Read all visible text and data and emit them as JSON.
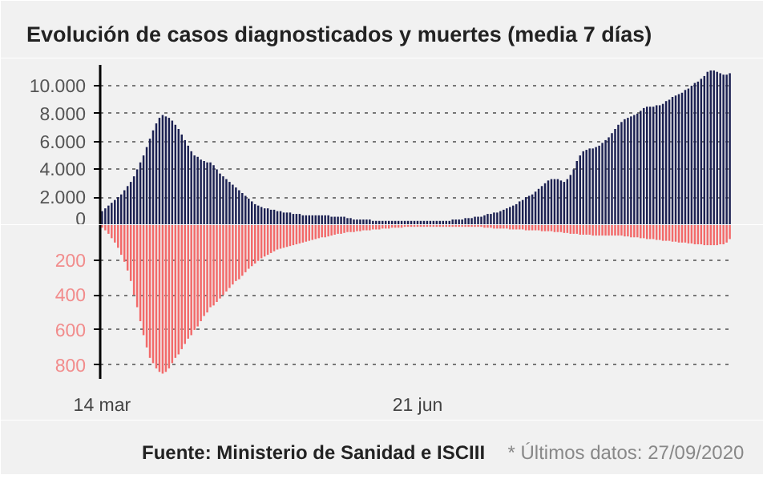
{
  "chart_data": [
    {
      "type": "bar",
      "title": "Evolución de casos diagnosticados y muertes (media 7 días)",
      "grid": "y",
      "ylim": [
        0,
        11500
      ],
      "yticks": [
        0,
        {
          "value": 2000,
          "label": "2.000"
        },
        {
          "value": 4000,
          "label": "4.000"
        },
        {
          "value": 6000,
          "label": "6.000"
        },
        {
          "value": 8000,
          "label": "8.000"
        },
        {
          "value": 10000,
          "label": "10.000"
        }
      ],
      "categories": [
        null,
        null,
        null,
        null,
        null,
        null,
        null,
        null,
        null,
        null,
        null,
        null,
        null,
        null,
        null,
        null,
        null,
        null,
        null,
        null,
        null,
        null,
        null,
        null,
        null,
        null,
        null,
        null,
        null,
        null,
        null,
        null,
        null,
        null,
        null,
        null,
        null,
        null,
        null,
        null,
        null,
        null,
        null,
        null,
        null,
        null,
        null,
        null,
        null,
        null,
        null,
        null,
        null,
        null,
        null,
        null,
        null,
        null,
        null,
        null,
        null,
        null,
        null,
        null,
        null,
        null,
        null,
        null,
        null,
        null,
        null,
        null,
        null,
        null,
        null,
        null,
        null,
        null,
        null,
        null,
        null,
        null,
        null,
        null,
        null,
        null,
        null,
        null,
        null,
        null,
        null,
        null,
        null,
        null,
        null,
        null,
        null,
        null,
        null,
        null,
        null,
        null,
        null,
        null,
        null,
        null,
        null,
        null,
        null,
        null,
        null,
        null,
        null,
        null,
        null,
        null,
        null,
        null,
        null,
        null,
        null,
        null,
        null,
        null,
        null,
        null,
        null,
        null,
        null,
        null,
        null,
        null,
        null,
        null,
        null,
        null,
        null,
        null,
        null,
        null,
        null,
        null,
        null,
        null,
        null,
        null,
        null,
        null,
        null,
        null,
        null,
        null,
        null,
        null,
        null,
        null,
        null,
        null,
        null,
        null,
        null,
        null,
        null,
        null,
        null,
        null,
        null,
        null,
        null,
        null,
        null,
        null,
        null,
        null,
        null,
        null,
        null,
        null,
        null,
        null,
        null,
        null,
        null,
        null,
        null,
        null,
        null,
        null,
        null,
        null,
        null,
        null,
        null,
        null,
        null,
        null,
        null,
        null
      ],
      "series": [
        {
          "color": "#1c2152",
          "values": [
            1000,
            1200,
            1400,
            1600,
            1800,
            2000,
            2200,
            2500,
            2800,
            3100,
            3500,
            4000,
            4500,
            5000,
            5600,
            6200,
            6800,
            7300,
            7700,
            7900,
            7800,
            7700,
            7500,
            7200,
            6900,
            6500,
            6100,
            5700,
            5300,
            5000,
            4900,
            4700,
            4600,
            4500,
            4500,
            4300,
            4000,
            3700,
            3500,
            3300,
            3100,
            2900,
            2700,
            2500,
            2300,
            2100,
            1900,
            1700,
            1500,
            1400,
            1300,
            1200,
            1200,
            1100,
            1100,
            1000,
            1000,
            900,
            900,
            900,
            800,
            800,
            800,
            700,
            700,
            700,
            700,
            700,
            700,
            700,
            700,
            700,
            600,
            600,
            600,
            600,
            600,
            500,
            500,
            400,
            400,
            400,
            400,
            400,
            400,
            300,
            300,
            300,
            300,
            300,
            300,
            300,
            300,
            300,
            300,
            300,
            300,
            300,
            300,
            300,
            300,
            300,
            300,
            300,
            300,
            300,
            300,
            300,
            300,
            300,
            400,
            400,
            400,
            400,
            500,
            500,
            500,
            600,
            600,
            600,
            700,
            800,
            800,
            900,
            900,
            1000,
            1100,
            1200,
            1300,
            1400,
            1500,
            1700,
            1800,
            2000,
            2100,
            2200,
            2400,
            2600,
            2800,
            3000,
            3200,
            3300,
            3300,
            3300,
            3200,
            3100,
            3300,
            3600,
            4000,
            4600,
            5000,
            5300,
            5400,
            5500,
            5500,
            5600,
            5700,
            5900,
            6100,
            6300,
            6600,
            6900,
            7200,
            7400,
            7600,
            7700,
            7800,
            7900,
            8000,
            8200,
            8400,
            8500,
            8500,
            8500,
            8600,
            8600,
            8700,
            8900,
            9000,
            9200,
            9300,
            9400,
            9500,
            9700,
            9800,
            10000,
            10200,
            10300,
            10500,
            10700,
            11000,
            11100,
            11100,
            11000,
            10900,
            10800,
            10800,
            10900
          ]
        }
      ]
    },
    {
      "type": "bar",
      "grid": "y",
      "ylim": [
        880,
        0
      ],
      "yticks": [
        200,
        400,
        600,
        800
      ],
      "categories": [
        "14 mar",
        null,
        null,
        null,
        null,
        null,
        null,
        null,
        null,
        null,
        null,
        null,
        null,
        null,
        null,
        null,
        null,
        null,
        null,
        null,
        null,
        null,
        null,
        null,
        null,
        null,
        null,
        null,
        null,
        null,
        null,
        null,
        null,
        null,
        null,
        null,
        null,
        null,
        null,
        null,
        null,
        null,
        null,
        null,
        null,
        null,
        null,
        null,
        null,
        null,
        null,
        null,
        null,
        null,
        null,
        null,
        null,
        null,
        null,
        null,
        null,
        null,
        null,
        null,
        null,
        null,
        null,
        null,
        null,
        null,
        null,
        null,
        null,
        null,
        null,
        null,
        null,
        null,
        null,
        null,
        null,
        null,
        null,
        null,
        null,
        null,
        null,
        null,
        null,
        null,
        null,
        null,
        null,
        null,
        null,
        null,
        null,
        null,
        null,
        "21 jun",
        null,
        null,
        null,
        null,
        null,
        null,
        null,
        null,
        null,
        null,
        null,
        null,
        null,
        null,
        null,
        null,
        null,
        null,
        null,
        null,
        null,
        null,
        null,
        null,
        null,
        null,
        null,
        null,
        null,
        null,
        null,
        null,
        null,
        null,
        null,
        null,
        null,
        null,
        null,
        null,
        null,
        null,
        null,
        null,
        null,
        null,
        null,
        null,
        null,
        null,
        null,
        null,
        null,
        null,
        null,
        null,
        null,
        null,
        null,
        null,
        null,
        null,
        null,
        null,
        null,
        null,
        null,
        null,
        null,
        null,
        null,
        null,
        null,
        null,
        null,
        null,
        null,
        null,
        null,
        null,
        null,
        null,
        null,
        null,
        null,
        null,
        null,
        null,
        null,
        null,
        null,
        null,
        null,
        null,
        null,
        null,
        null,
        null
      ],
      "series": [
        {
          "color": "#f26a6a",
          "values": [
            15,
            30,
            50,
            75,
            100,
            130,
            170,
            210,
            260,
            320,
            400,
            470,
            550,
            630,
            700,
            760,
            790,
            820,
            840,
            850,
            840,
            820,
            790,
            760,
            740,
            710,
            680,
            650,
            630,
            600,
            580,
            550,
            520,
            500,
            470,
            460,
            440,
            420,
            400,
            380,
            360,
            340,
            320,
            310,
            290,
            270,
            250,
            235,
            220,
            205,
            190,
            180,
            170,
            160,
            150,
            140,
            135,
            130,
            125,
            120,
            115,
            110,
            105,
            100,
            95,
            90,
            85,
            80,
            75,
            70,
            70,
            65,
            60,
            55,
            50,
            50,
            45,
            40,
            40,
            40,
            35,
            35,
            30,
            30,
            30,
            25,
            25,
            25,
            20,
            20,
            20,
            15,
            15,
            15,
            15,
            10,
            10,
            10,
            10,
            10,
            10,
            10,
            10,
            10,
            10,
            10,
            10,
            10,
            10,
            10,
            10,
            10,
            10,
            10,
            10,
            10,
            10,
            10,
            10,
            10,
            15,
            15,
            15,
            20,
            20,
            20,
            20,
            20,
            25,
            25,
            25,
            25,
            25,
            30,
            30,
            30,
            30,
            30,
            35,
            35,
            35,
            35,
            40,
            40,
            40,
            45,
            45,
            50,
            50,
            50,
            55,
            55,
            55,
            55,
            60,
            60,
            60,
            60,
            60,
            60,
            60,
            60,
            60,
            60,
            65,
            65,
            70,
            70,
            70,
            75,
            75,
            80,
            80,
            80,
            85,
            85,
            90,
            90,
            90,
            95,
            95,
            100,
            100,
            100,
            105,
            105,
            110,
            110,
            110,
            115,
            115,
            115,
            115,
            115,
            110,
            110,
            100,
            80
          ]
        }
      ],
      "annotations": [
        "Fuente: Ministerio de Sanidad e ISCIII",
        "* Últimos datos: 27/09/2020"
      ]
    }
  ]
}
